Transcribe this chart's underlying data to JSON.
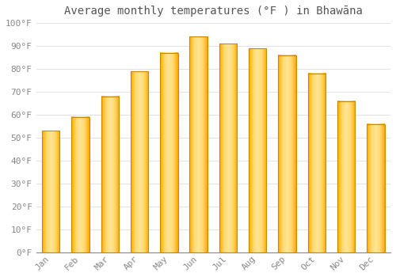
{
  "title": "Average monthly temperatures (°F ) in Bhawāna",
  "months": [
    "Jan",
    "Feb",
    "Mar",
    "Apr",
    "May",
    "Jun",
    "Jul",
    "Aug",
    "Sep",
    "Oct",
    "Nov",
    "Dec"
  ],
  "values": [
    53,
    59,
    68,
    79,
    87,
    94,
    91,
    89,
    86,
    78,
    66,
    56
  ],
  "bar_color_center": "#FFD966",
  "bar_color_edge": "#FFA500",
  "background_color": "#FFFFFF",
  "grid_color": "#DDDDDD",
  "ylim": [
    0,
    100
  ],
  "yticks": [
    0,
    10,
    20,
    30,
    40,
    50,
    60,
    70,
    80,
    90,
    100
  ],
  "ytick_labels": [
    "0°F",
    "10°F",
    "20°F",
    "30°F",
    "40°F",
    "50°F",
    "60°F",
    "70°F",
    "80°F",
    "90°F",
    "100°F"
  ],
  "title_fontsize": 10,
  "tick_fontsize": 8,
  "figsize": [
    5.0,
    3.5
  ],
  "dpi": 100,
  "bar_width": 0.6
}
